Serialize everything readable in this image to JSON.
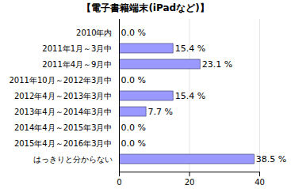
{
  "chart_data": {
    "type": "bar",
    "title": "【電子書籍端末(iPadなど)】",
    "orientation": "horizontal",
    "categories": [
      "2010年内",
      "2011年1月～3月中",
      "2011年4月～9月中",
      "2011年10月～2012年3月中",
      "2012年4月～2013年3月中",
      "2013年4月～2014年3月中",
      "2014年4月～2015年3月中",
      "2015年4月～2016年3月中",
      "はっきりと分からない"
    ],
    "values": [
      0.0,
      15.4,
      23.1,
      0.0,
      15.4,
      7.7,
      0.0,
      0.0,
      38.5
    ],
    "value_labels": [
      "0.0 %",
      "15.4 %",
      "23.1 %",
      "0.0 %",
      "15.4 %",
      "7.7 %",
      "0.0 %",
      "0.0 %",
      "38.5 %"
    ],
    "data_labels": true,
    "color": "#9999ff",
    "xlim": [
      0,
      40
    ],
    "xticks": [
      0,
      20,
      40
    ],
    "grid": true
  }
}
